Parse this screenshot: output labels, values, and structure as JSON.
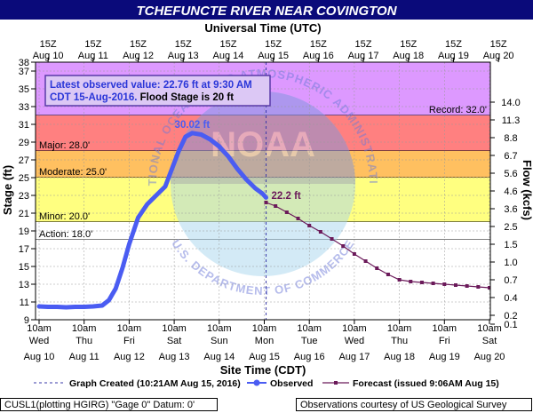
{
  "chart_data": {
    "type": "line",
    "title": "TCHEFUNCTE RIVER NEAR COVINGTON",
    "top_axis_title": "Universal Time (UTC)",
    "bottom_axis_title": "Site Time (CDT)",
    "ylabel_left": "Stage (ft)",
    "ylabel_right": "Flow (kcfs)",
    "ylim": [
      9,
      38
    ],
    "xlim": [
      0,
      10.3
    ],
    "y_ticks": [
      9,
      11,
      13,
      15,
      17,
      19,
      21,
      23,
      25,
      27,
      29,
      31,
      33,
      35,
      37,
      38
    ],
    "top_ticks": [
      {
        "x": 0.2,
        "l1": "15Z",
        "l2": "Aug 10"
      },
      {
        "x": 1.2,
        "l1": "15Z",
        "l2": "Aug 11"
      },
      {
        "x": 2.2,
        "l1": "15Z",
        "l2": "Aug 12"
      },
      {
        "x": 3.2,
        "l1": "15Z",
        "l2": "Aug 13"
      },
      {
        "x": 4.2,
        "l1": "15Z",
        "l2": "Aug 14"
      },
      {
        "x": 5.2,
        "l1": "15Z",
        "l2": "Aug 15"
      },
      {
        "x": 6.2,
        "l1": "15Z",
        "l2": "Aug 16"
      },
      {
        "x": 7.2,
        "l1": "15Z",
        "l2": "Aug 17"
      },
      {
        "x": 8.2,
        "l1": "15Z",
        "l2": "Aug 18"
      },
      {
        "x": 9.2,
        "l1": "15Z",
        "l2": "Aug 19"
      },
      {
        "x": 10.2,
        "l1": "15Z",
        "l2": "Aug 20"
      }
    ],
    "bottom_ticks": [
      {
        "x": 0,
        "l1": "10am",
        "l2": "Wed",
        "l3": "Aug 10"
      },
      {
        "x": 1,
        "l1": "10am",
        "l2": "Thu",
        "l3": "Aug 11"
      },
      {
        "x": 2,
        "l1": "10am",
        "l2": "Fri",
        "l3": "Aug 12"
      },
      {
        "x": 3,
        "l1": "10am",
        "l2": "Sat",
        "l3": "Aug 13"
      },
      {
        "x": 4,
        "l1": "10am",
        "l2": "Sun",
        "l3": "Aug 14"
      },
      {
        "x": 5,
        "l1": "10am",
        "l2": "Mon",
        "l3": "Aug 15"
      },
      {
        "x": 6,
        "l1": "10am",
        "l2": "Tue",
        "l3": "Aug 16"
      },
      {
        "x": 7,
        "l1": "10am",
        "l2": "Wed",
        "l3": "Aug 17"
      },
      {
        "x": 8,
        "l1": "10am",
        "l2": "Thu",
        "l3": "Aug 18"
      },
      {
        "x": 9,
        "l1": "10am",
        "l2": "Fri",
        "l3": "Aug 19"
      },
      {
        "x": 10,
        "l1": "10am",
        "l2": "Sat",
        "l3": "Aug 20"
      }
    ],
    "flow_ticks": [
      {
        "y": 33.5,
        "label": "14.0"
      },
      {
        "y": 31.5,
        "label": "11.3"
      },
      {
        "y": 29.5,
        "label": "8.8"
      },
      {
        "y": 27.5,
        "label": "6.7"
      },
      {
        "y": 25.5,
        "label": "5.6"
      },
      {
        "y": 23.5,
        "label": "4.6"
      },
      {
        "y": 21.5,
        "label": "3.6"
      },
      {
        "y": 19.5,
        "label": "2.5"
      },
      {
        "y": 17.5,
        "label": "1.5"
      },
      {
        "y": 15.5,
        "label": "1.0"
      },
      {
        "y": 13.5,
        "label": "0.7"
      },
      {
        "y": 11.5,
        "label": "0.4"
      },
      {
        "y": 9.5,
        "label": "0.2"
      },
      {
        "y": 8.5,
        "label": "0.1"
      }
    ],
    "flood_categories": [
      {
        "name": "Record",
        "label": "Record: 32.0'",
        "value": 32.0,
        "color": "#dd99ff"
      },
      {
        "name": "Major",
        "label": "Major: 28.0'",
        "value": 28.0,
        "color": "#ff8080"
      },
      {
        "name": "Moderate",
        "label": "Moderate: 25.0'",
        "value": 25.0,
        "color": "#ffc060"
      },
      {
        "name": "Minor",
        "label": "Minor: 20.0'",
        "value": 20.0,
        "color": "#ffff80"
      },
      {
        "name": "Action",
        "label": "Action: 18.0'",
        "value": 18.0,
        "color": "#ffffff"
      }
    ],
    "series": [
      {
        "name": "Observed",
        "color": "#4a5cf2",
        "points": [
          [
            0,
            10.5
          ],
          [
            0.2,
            10.45
          ],
          [
            0.4,
            10.45
          ],
          [
            0.6,
            10.4
          ],
          [
            0.8,
            10.45
          ],
          [
            1.0,
            10.45
          ],
          [
            1.2,
            10.5
          ],
          [
            1.4,
            10.6
          ],
          [
            1.55,
            11.2
          ],
          [
            1.7,
            12.5
          ],
          [
            1.85,
            14.8
          ],
          [
            2.0,
            17.5
          ],
          [
            2.2,
            20.5
          ],
          [
            2.4,
            22.0
          ],
          [
            2.6,
            23.0
          ],
          [
            2.8,
            24.0
          ],
          [
            2.95,
            26.0
          ],
          [
            3.1,
            28.0
          ],
          [
            3.25,
            29.6
          ],
          [
            3.4,
            30.02
          ],
          [
            3.6,
            29.85
          ],
          [
            3.8,
            29.3
          ],
          [
            4.0,
            28.5
          ],
          [
            4.2,
            27.4
          ],
          [
            4.4,
            26.0
          ],
          [
            4.6,
            24.8
          ],
          [
            4.8,
            23.8
          ],
          [
            4.96,
            23.2
          ],
          [
            5.04,
            22.76
          ]
        ]
      },
      {
        "name": "Forecast",
        "color": "#6b1a5a",
        "points": [
          [
            5.04,
            22.2
          ],
          [
            5.25,
            21.8
          ],
          [
            5.5,
            21.1
          ],
          [
            5.75,
            20.4
          ],
          [
            6.0,
            19.6
          ],
          [
            6.25,
            18.9
          ],
          [
            6.5,
            18.1
          ],
          [
            6.75,
            17.3
          ],
          [
            7.0,
            16.4
          ],
          [
            7.25,
            15.6
          ],
          [
            7.5,
            14.8
          ],
          [
            7.75,
            14.1
          ],
          [
            8.0,
            13.5
          ],
          [
            8.25,
            13.3
          ],
          [
            8.5,
            13.2
          ],
          [
            8.75,
            13.1
          ],
          [
            9.0,
            13.0
          ],
          [
            9.25,
            12.9
          ],
          [
            9.5,
            12.8
          ],
          [
            9.75,
            12.7
          ],
          [
            10.0,
            12.6
          ],
          [
            10.2,
            12.5
          ]
        ]
      }
    ],
    "graph_created_x": 5.04,
    "peak_label": "30.02 ft",
    "forecast_label": "22.2 ft",
    "info_line1": "Latest observed value: 22.76 ft at 9:30 AM",
    "info_line2a": "CDT 15-Aug-2016.",
    "info_line2b": " Flood Stage is 20 ft",
    "watermark_agency": "NATIONAL OCEANIC AND ATMOSPHERIC ADMINISTRATION",
    "watermark_dept": "U.S. DEPARTMENT OF COMMERCE",
    "watermark_logo": "NOAA",
    "legend": [
      {
        "label": "Graph Created (10:21AM Aug 15, 2016)"
      },
      {
        "label": "Observed"
      },
      {
        "label": "Forecast (issued 9:06AM Aug 15)"
      }
    ],
    "grid": true
  },
  "footer": {
    "left": "CUSL1(plotting HGIRG) \"Gage 0\" Datum: 0'",
    "right": "Observations courtesy of US Geological Survey"
  }
}
